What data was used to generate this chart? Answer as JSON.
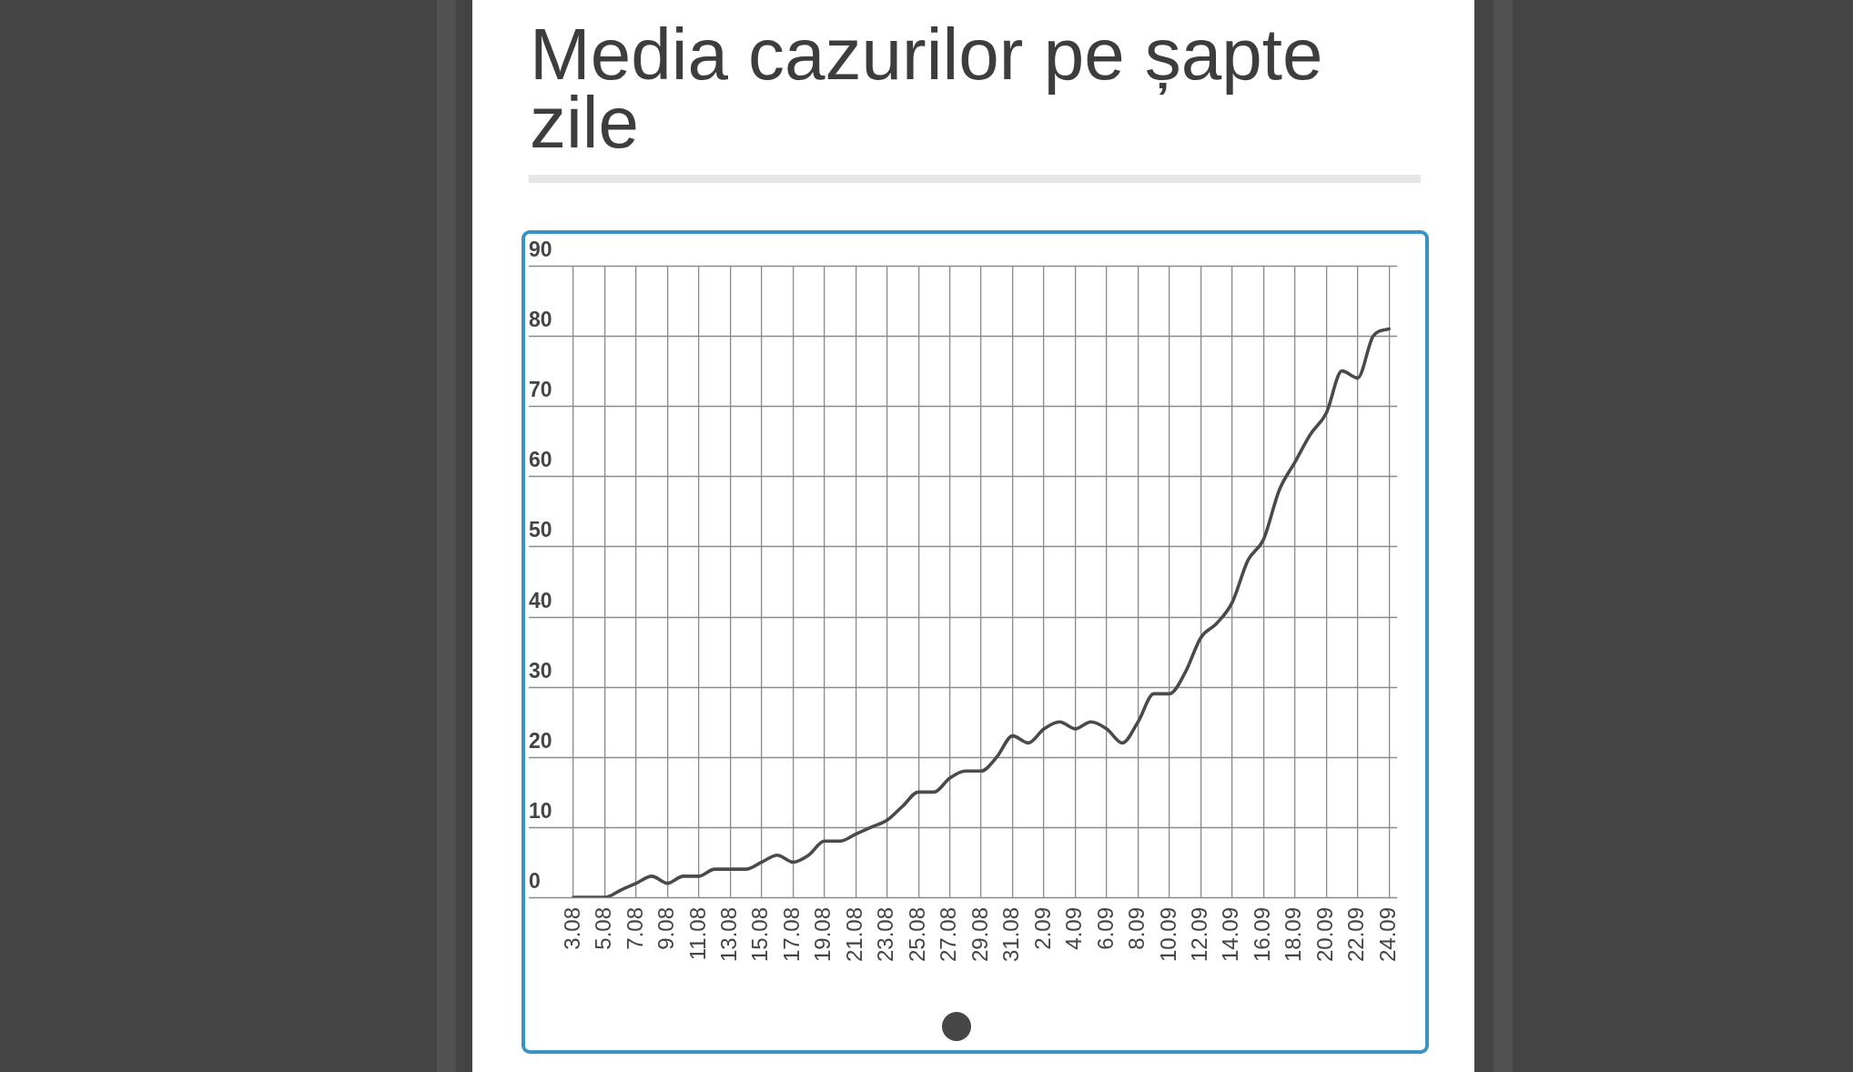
{
  "chart_data": {
    "type": "line",
    "title": "Media cazurilor pe șapte zile",
    "categories": [
      "3.08",
      null,
      "5.08",
      null,
      "7.08",
      null,
      "9.08",
      null,
      "11.08",
      null,
      "13.08",
      null,
      "15.08",
      null,
      "17.08",
      null,
      "19.08",
      null,
      "21.08",
      null,
      "23.08",
      null,
      "25.08",
      null,
      "27.08",
      null,
      "29.08",
      null,
      "31.08",
      null,
      "2.09",
      null,
      "4.09",
      null,
      "6.09",
      null,
      "8.09",
      null,
      "10.09",
      null,
      "12.09",
      null,
      "14.09",
      null,
      "16.09",
      null,
      "18.09",
      null,
      "20.09",
      null,
      "22.09",
      null,
      "24.09"
    ],
    "values": [
      0,
      0,
      0,
      1,
      2,
      3,
      2,
      3,
      3,
      4,
      4,
      4,
      5,
      6,
      5,
      6,
      8,
      8,
      9,
      10,
      11,
      13,
      15,
      15,
      17,
      18,
      18,
      20,
      23,
      22,
      24,
      25,
      24,
      25,
      24,
      22,
      25,
      29,
      29,
      32,
      37,
      39,
      42,
      48,
      51,
      58,
      62,
      66,
      69,
      75,
      74,
      80,
      81
    ],
    "color": "#4a4a4a",
    "ylim": [
      0,
      90
    ],
    "yticks": [
      0,
      10,
      20,
      30,
      40,
      50,
      60,
      70,
      80,
      90
    ],
    "grid": true
  }
}
